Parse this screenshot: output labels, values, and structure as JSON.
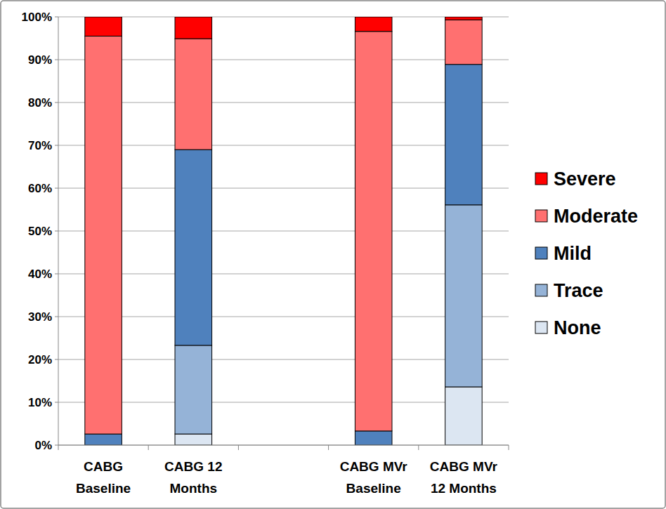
{
  "chart_data": {
    "type": "bar",
    "stacked": true,
    "grid": true,
    "legend": "right",
    "categories": [
      "CABG Baseline",
      "CABG 12 Months",
      "CABG MVr Baseline",
      "CABG MVr 12 Months"
    ],
    "series": [
      {
        "name": "None",
        "color": "#dce6f2",
        "values": [
          0,
          2.6,
          0,
          13.6
        ]
      },
      {
        "name": "Trace",
        "color": "#95b3d7",
        "values": [
          0,
          20.7,
          0,
          42.5
        ]
      },
      {
        "name": "Mild",
        "color": "#4f81bd",
        "values": [
          2.6,
          45.7,
          3.3,
          32.8
        ]
      },
      {
        "name": "Moderate",
        "color": "#ff7070",
        "values": [
          92.9,
          25.9,
          93.3,
          10.4
        ]
      },
      {
        "name": "Severe",
        "color": "#ff0000",
        "values": [
          4.5,
          5.1,
          3.4,
          0.7
        ]
      }
    ],
    "ylim": [
      0,
      100
    ],
    "yticks": [
      {
        "value": 0,
        "label": "0%"
      },
      {
        "value": 10,
        "label": "10%"
      },
      {
        "value": 20,
        "label": "20%"
      },
      {
        "value": 30,
        "label": "30%"
      },
      {
        "value": 40,
        "label": "40%"
      },
      {
        "value": 50,
        "label": "50%"
      },
      {
        "value": 60,
        "label": "60%"
      },
      {
        "value": 70,
        "label": "70%"
      },
      {
        "value": 80,
        "label": "80%"
      },
      {
        "value": 90,
        "label": "90%"
      },
      {
        "value": 100,
        "label": "100%"
      }
    ]
  }
}
